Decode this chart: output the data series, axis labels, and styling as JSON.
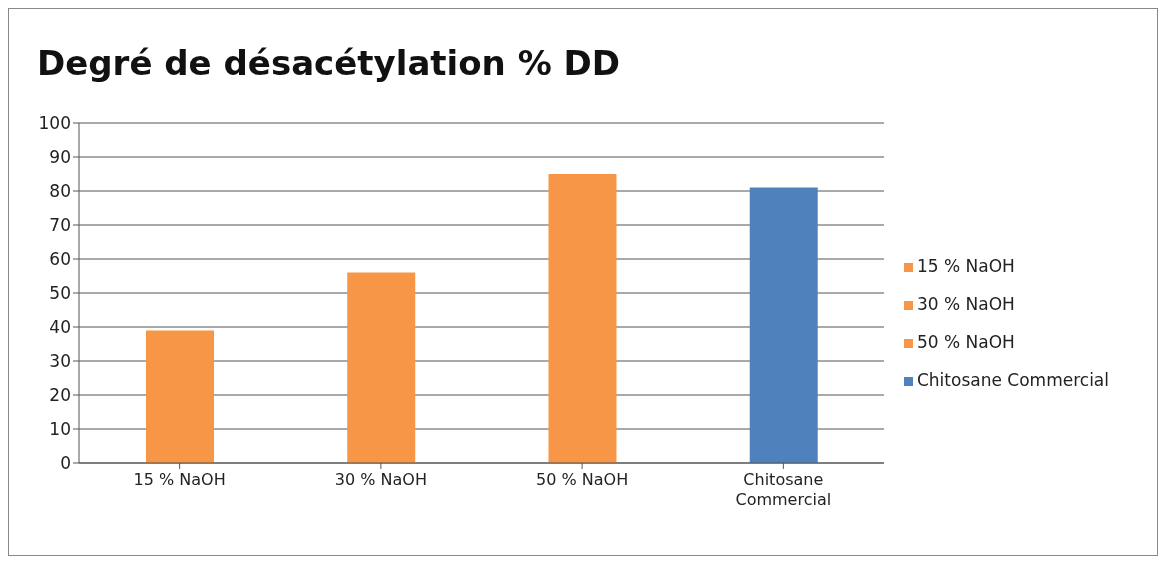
{
  "chart_data": {
    "type": "bar",
    "title": "Degré de désacétylation % DD",
    "categories": [
      "15 % NaOH",
      "30 % NaOH",
      "50 % NaOH",
      "Chitosane Commercial"
    ],
    "series": [
      {
        "name": "15 % NaOH",
        "color": "#f79646",
        "values": [
          39,
          null,
          null,
          null
        ]
      },
      {
        "name": "30 % NaOH",
        "color": "#f79646",
        "values": [
          null,
          56,
          null,
          null
        ]
      },
      {
        "name": "50 % NaOH",
        "color": "#f79646",
        "values": [
          null,
          null,
          85,
          null
        ]
      },
      {
        "name": "Chitosane Commercial",
        "color": "#4f81bd",
        "values": [
          null,
          null,
          null,
          81
        ]
      }
    ],
    "stacked": true,
    "ylim": [
      0,
      100
    ],
    "yticks": [
      0,
      10,
      20,
      30,
      40,
      50,
      60,
      70,
      80,
      90,
      100
    ],
    "grid": "y",
    "legend": "right"
  }
}
